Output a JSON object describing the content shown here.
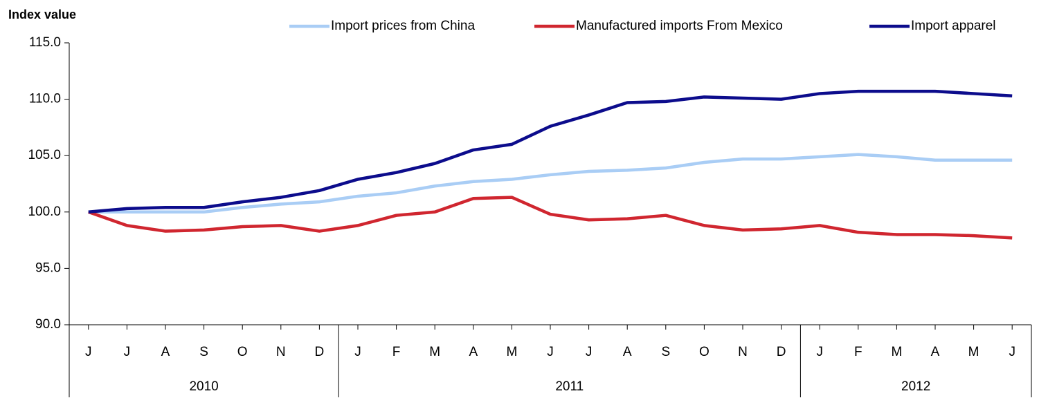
{
  "chart_data": {
    "type": "line",
    "y_label": "Index value",
    "categories": [
      "J",
      "J",
      "A",
      "S",
      "O",
      "N",
      "D",
      "J",
      "F",
      "M",
      "A",
      "M",
      "J",
      "J",
      "A",
      "S",
      "O",
      "N",
      "D",
      "J",
      "F",
      "M",
      "A",
      "M",
      "J"
    ],
    "x_groups": [
      {
        "label": "2010",
        "count": 7
      },
      {
        "label": "2011",
        "count": 12
      },
      {
        "label": "2012",
        "count": 6
      }
    ],
    "series": [
      {
        "name": "Import prices from China",
        "color": "#a9cdf5",
        "values": [
          100,
          100,
          100,
          100,
          100.4,
          100.7,
          100.9,
          101.4,
          101.7,
          102.3,
          102.7,
          102.9,
          103.3,
          103.6,
          103.7,
          103.9,
          104.4,
          104.7,
          104.7,
          104.9,
          105.1,
          104.9,
          104.6,
          104.6,
          104.6
        ]
      },
      {
        "name": "Manufactured imports From Mexico",
        "color": "#d0262f",
        "values": [
          100,
          98.8,
          98.3,
          98.4,
          98.7,
          98.8,
          98.3,
          98.8,
          99.7,
          100.0,
          101.2,
          101.3,
          99.8,
          99.3,
          99.4,
          99.7,
          98.8,
          98.4,
          98.5,
          98.8,
          98.2,
          98.0,
          98.0,
          97.9,
          97.7
        ]
      },
      {
        "name": "Import apparel",
        "color": "#0c0c8c",
        "values": [
          100,
          100.3,
          100.4,
          100.4,
          100.9,
          101.3,
          101.9,
          102.9,
          103.5,
          104.3,
          105.5,
          106.0,
          107.6,
          108.6,
          109.7,
          109.8,
          110.2,
          110.1,
          110.0,
          110.5,
          110.7,
          110.7,
          110.7,
          110.5,
          110.3
        ]
      }
    ],
    "ylim": [
      90,
      115
    ],
    "yticks": [
      {
        "value": 90,
        "label": "90.0"
      },
      {
        "value": 95,
        "label": "95.0"
      },
      {
        "value": 100,
        "label": "100.0"
      },
      {
        "value": 105,
        "label": "105.0"
      },
      {
        "value": 110,
        "label": "110.0"
      },
      {
        "value": 115,
        "label": "115.0"
      }
    ],
    "grid": false,
    "legend": "top"
  }
}
